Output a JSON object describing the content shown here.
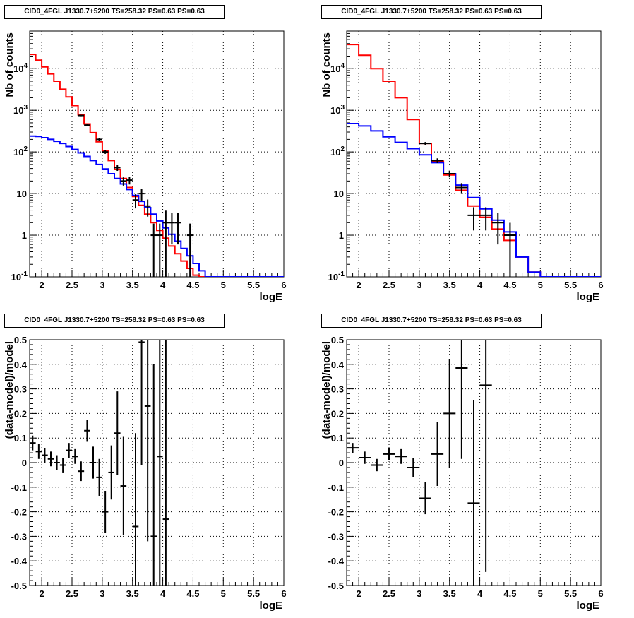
{
  "colors": {
    "data": "#000000",
    "total_model": "#ff0000",
    "component_model": "#0000ff",
    "grid": "#000000"
  },
  "chart_data": [
    {
      "type": "line",
      "subtype": "histogram-with-errorbars",
      "title": "CID0_4FGL J1330.7+5200 TS=258.32 PS=0.63 PS=0.63",
      "xlabel": "logE",
      "ylabel": "Nb of counts",
      "xlim": [
        1.8,
        6
      ],
      "ylim": [
        0.1,
        80000
      ],
      "yscale": "log",
      "grid": true,
      "xticks": [
        "2",
        "2.5",
        "3",
        "3.5",
        "4",
        "4.5",
        "5",
        "5.5",
        "6"
      ],
      "yticks": [
        "10^-1",
        "1",
        "10",
        "10^2",
        "10^3",
        "10^4"
      ],
      "bin_edges": [
        1.8,
        1.9,
        2.0,
        2.1,
        2.2,
        2.3,
        2.4,
        2.5,
        2.6,
        2.7,
        2.8,
        2.9,
        3.0,
        3.1,
        3.2,
        3.3,
        3.4,
        3.5,
        3.6,
        3.7,
        3.8,
        3.9,
        4.0,
        4.1,
        4.2,
        4.3,
        4.4,
        4.5,
        4.6,
        4.7,
        4.8,
        4.9,
        5.0,
        5.1,
        5.2,
        5.3,
        5.4,
        5.5,
        5.6,
        5.7,
        5.8,
        5.9,
        6.0
      ],
      "series": [
        {
          "name": "",
          "role": "total_model",
          "color": "#ff0000",
          "values": [
            22000,
            16000,
            11000,
            7500,
            5000,
            3200,
            2100,
            1300,
            780,
            470,
            290,
            175,
            105,
            62,
            38,
            23,
            14,
            8.5,
            5.2,
            3.2,
            2.0,
            1.3,
            0.85,
            0.55,
            0.36,
            0.24,
            0.16,
            0.11,
            0.075,
            0.06,
            0.06,
            0.06,
            0.06,
            0.06,
            0.06,
            0.06,
            0.06,
            0.06,
            0.06,
            0.06,
            0.06,
            0.06
          ]
        },
        {
          "name": "",
          "role": "component_model",
          "color": "#0000ff",
          "values": [
            240,
            235,
            220,
            200,
            180,
            160,
            135,
            115,
            95,
            78,
            62,
            50,
            39,
            30,
            23,
            17,
            12.5,
            9,
            6.5,
            4.6,
            3.2,
            2.2,
            1.5,
            1.05,
            0.72,
            0.48,
            0.32,
            0.21,
            0.14,
            0.09,
            0.09,
            0.09,
            0.09,
            0.09,
            0.09,
            0.09,
            0.09,
            0.09,
            0.09,
            0.09,
            0.09,
            0.09
          ]
        },
        {
          "name": "",
          "role": "data",
          "color": "#000000",
          "errorbars": true,
          "points": [
            {
              "x": 2.65,
              "y": 750,
              "err": 30
            },
            {
              "x": 2.75,
              "y": 440,
              "err": 25
            },
            {
              "x": 2.95,
              "y": 200,
              "err": 15
            },
            {
              "x": 3.05,
              "y": 100,
              "err": 10
            },
            {
              "x": 3.25,
              "y": 42,
              "err": 7
            },
            {
              "x": 3.35,
              "y": 20,
              "err": 4.5
            },
            {
              "x": 3.45,
              "y": 21,
              "err": 4.5
            },
            {
              "x": 3.55,
              "y": 7,
              "err": 2.6
            },
            {
              "x": 3.65,
              "y": 10,
              "err": 3.2
            },
            {
              "x": 3.75,
              "y": 5,
              "err": 2.2
            },
            {
              "x": 3.85,
              "y": 1,
              "err": 0.9
            },
            {
              "x": 3.95,
              "y": 1,
              "err": 0.9
            },
            {
              "x": 4.05,
              "y": 2,
              "err": 1.9
            },
            {
              "x": 4.15,
              "y": 2,
              "err": 1.4
            },
            {
              "x": 4.25,
              "y": 2,
              "err": 1.4
            },
            {
              "x": 4.45,
              "y": 1,
              "err": 0.9
            }
          ]
        }
      ]
    },
    {
      "type": "line",
      "subtype": "histogram-with-errorbars",
      "title": "CID0_4FGL J1330.7+5200 TS=258.32 PS=0.63 PS=0.63",
      "xlabel": "logE",
      "ylabel": "Nb of counts",
      "xlim": [
        1.8,
        6
      ],
      "ylim": [
        0.1,
        80000
      ],
      "yscale": "log",
      "grid": true,
      "xticks": [
        "2",
        "2.5",
        "3",
        "3.5",
        "4",
        "4.5",
        "5",
        "5.5",
        "6"
      ],
      "yticks": [
        "10^-1",
        "1",
        "10",
        "10^2",
        "10^3",
        "10^4"
      ],
      "bin_edges": [
        1.8,
        2.0,
        2.2,
        2.4,
        2.6,
        2.8,
        3.0,
        3.2,
        3.4,
        3.6,
        3.8,
        4.0,
        4.2,
        4.4,
        4.6,
        4.8,
        5.0,
        5.2,
        5.4,
        5.6,
        5.8,
        6.0
      ],
      "series": [
        {
          "name": "",
          "role": "total_model",
          "color": "#ff0000",
          "values": [
            38000,
            21000,
            10000,
            5000,
            2000,
            600,
            160,
            60,
            28,
            12,
            5,
            2.7,
            1.4,
            0.75,
            0.3,
            0.13,
            0.1,
            0.1,
            0.1,
            0.1,
            0.1
          ]
        },
        {
          "name": "",
          "role": "component_model",
          "color": "#0000ff",
          "values": [
            480,
            420,
            320,
            230,
            170,
            120,
            85,
            55,
            30,
            16,
            8,
            4.3,
            2.3,
            1.2,
            0.3,
            0.13,
            0.1,
            0.1,
            0.1,
            0.1,
            0.1
          ]
        },
        {
          "name": "",
          "role": "data",
          "color": "#000000",
          "errorbars": true,
          "points": [
            {
              "x": 3.1,
              "y": 160,
              "err": 13
            },
            {
              "x": 3.3,
              "y": 62,
              "err": 8
            },
            {
              "x": 3.5,
              "y": 30,
              "err": 5.5
            },
            {
              "x": 3.7,
              "y": 14,
              "err": 3.8
            },
            {
              "x": 3.9,
              "y": 3,
              "err": 1.7
            },
            {
              "x": 4.1,
              "y": 3,
              "err": 1.7
            },
            {
              "x": 4.3,
              "y": 2,
              "err": 1.4
            },
            {
              "x": 4.5,
              "y": 1,
              "err": 0.98
            }
          ]
        }
      ]
    },
    {
      "type": "scatter",
      "subtype": "points-with-errorbars",
      "title": "CID0_4FGL J1330.7+5200 TS=258.32 PS=0.63 PS=0.63",
      "xlabel": "logE",
      "ylabel": "(data-model)/model",
      "xlim": [
        1.8,
        6
      ],
      "ylim": [
        -0.5,
        0.5
      ],
      "grid": true,
      "xticks": [
        "2",
        "2.5",
        "3",
        "3.5",
        "4",
        "4.5",
        "5",
        "5.5",
        "6"
      ],
      "yticks": [
        "-0.5",
        "-0.4",
        "-0.3",
        "-0.2",
        "-0.1",
        "0",
        "0.1",
        "0.2",
        "0.3",
        "0.4",
        "0.5"
      ],
      "series": [
        {
          "name": "",
          "color": "#000000",
          "points": [
            {
              "x": 1.85,
              "y": 0.08,
              "err": 0.03,
              "xw": 0.05
            },
            {
              "x": 1.95,
              "y": 0.045,
              "err": 0.03,
              "xw": 0.05
            },
            {
              "x": 2.05,
              "y": 0.03,
              "err": 0.03,
              "xw": 0.05
            },
            {
              "x": 2.15,
              "y": 0.015,
              "err": 0.03,
              "xw": 0.05
            },
            {
              "x": 2.25,
              "y": 0.0,
              "err": 0.03,
              "xw": 0.05
            },
            {
              "x": 2.35,
              "y": -0.01,
              "err": 0.03,
              "xw": 0.05
            },
            {
              "x": 2.45,
              "y": 0.05,
              "err": 0.03,
              "xw": 0.05
            },
            {
              "x": 2.55,
              "y": 0.025,
              "err": 0.03,
              "xw": 0.05
            },
            {
              "x": 2.65,
              "y": -0.035,
              "err": 0.04,
              "xw": 0.05
            },
            {
              "x": 2.75,
              "y": 0.13,
              "err": 0.045,
              "xw": 0.05
            },
            {
              "x": 2.85,
              "y": 0.0,
              "err": 0.065,
              "xw": 0.05
            },
            {
              "x": 2.95,
              "y": -0.06,
              "err": 0.075,
              "xw": 0.05
            },
            {
              "x": 3.05,
              "y": -0.2,
              "err": 0.085,
              "xw": 0.05
            },
            {
              "x": 3.15,
              "y": -0.04,
              "err": 0.11,
              "xw": 0.05
            },
            {
              "x": 3.25,
              "y": 0.12,
              "err": 0.17,
              "xw": 0.05
            },
            {
              "x": 3.35,
              "y": -0.095,
              "err": 0.2,
              "xw": 0.05
            },
            {
              "x": 3.55,
              "y": -0.26,
              "err": 0.38,
              "xw": 0.05
            },
            {
              "x": 3.65,
              "y": 0.49,
              "err": 0.5,
              "xw": 0.05
            },
            {
              "x": 3.75,
              "y": 0.23,
              "err": 0.55,
              "xw": 0.05
            },
            {
              "x": 3.85,
              "y": -0.3,
              "err": 0.7,
              "xw": 0.05
            },
            {
              "x": 3.95,
              "y": 0.025,
              "err": 0.85,
              "xw": 0.05
            },
            {
              "x": 4.05,
              "y": -0.23,
              "err": 1.0,
              "xw": 0.05
            }
          ]
        }
      ]
    },
    {
      "type": "scatter",
      "subtype": "points-with-errorbars",
      "title": "CID0_4FGL J1330.7+5200 TS=258.32 PS=0.63 PS=0.63",
      "xlabel": "logE",
      "ylabel": "(data-model)/model",
      "xlim": [
        1.8,
        6
      ],
      "ylim": [
        -0.5,
        0.5
      ],
      "grid": true,
      "xticks": [
        "2",
        "2.5",
        "3",
        "3.5",
        "4",
        "4.5",
        "5",
        "5.5",
        "6"
      ],
      "yticks": [
        "-0.5",
        "-0.4",
        "-0.3",
        "-0.2",
        "-0.1",
        "0",
        "0.1",
        "0.2",
        "0.3",
        "0.4",
        "0.5"
      ],
      "series": [
        {
          "name": "",
          "color": "#000000",
          "points": [
            {
              "x": 1.9,
              "y": 0.06,
              "err": 0.02,
              "xw": 0.1
            },
            {
              "x": 2.1,
              "y": 0.02,
              "err": 0.025,
              "xw": 0.1
            },
            {
              "x": 2.3,
              "y": -0.01,
              "err": 0.025,
              "xw": 0.1
            },
            {
              "x": 2.5,
              "y": 0.035,
              "err": 0.025,
              "xw": 0.1
            },
            {
              "x": 2.7,
              "y": 0.025,
              "err": 0.03,
              "xw": 0.1
            },
            {
              "x": 2.9,
              "y": -0.02,
              "err": 0.04,
              "xw": 0.1
            },
            {
              "x": 3.1,
              "y": -0.145,
              "err": 0.065,
              "xw": 0.1
            },
            {
              "x": 3.3,
              "y": 0.035,
              "err": 0.13,
              "xw": 0.1
            },
            {
              "x": 3.5,
              "y": 0.2,
              "err": 0.22,
              "xw": 0.1
            },
            {
              "x": 3.7,
              "y": 0.385,
              "err": 0.37,
              "xw": 0.1
            },
            {
              "x": 3.9,
              "y": -0.165,
              "err": 0.42,
              "xw": 0.1
            },
            {
              "x": 4.1,
              "y": 0.315,
              "err": 0.76,
              "xw": 0.1
            }
          ]
        }
      ]
    }
  ]
}
